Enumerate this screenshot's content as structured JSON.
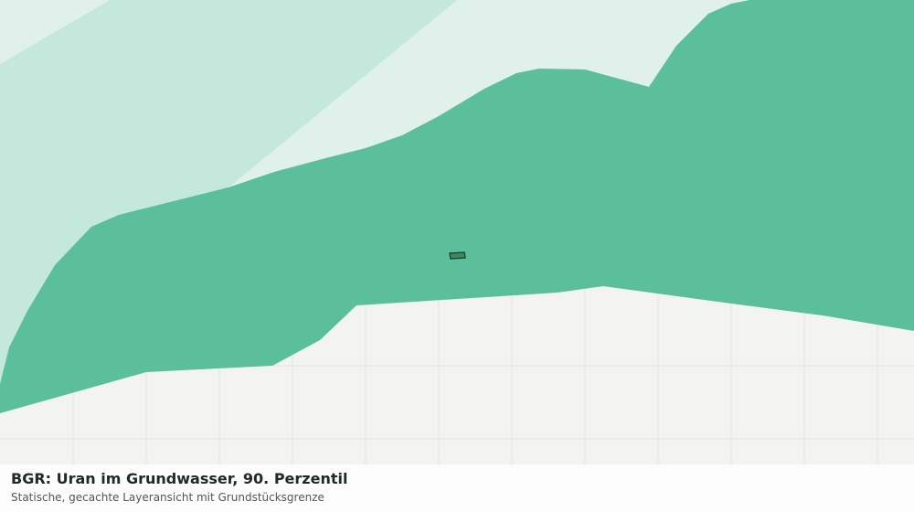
{
  "title": "BGR: Uran im Grundwasser, 90. Perzentil",
  "subtitle": "Statische, gecachte Layeransicht mit Grundstücksgrenze"
}
